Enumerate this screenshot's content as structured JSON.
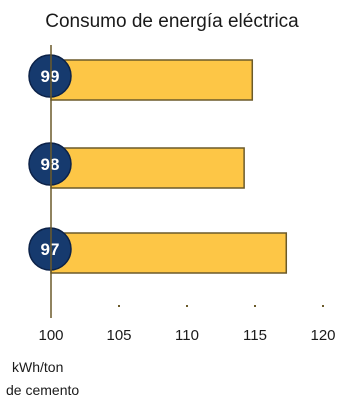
{
  "chart_data": {
    "type": "bar",
    "orientation": "horizontal",
    "title": "Consumo de energía eléctrica",
    "categories": [
      "99",
      "98",
      "97"
    ],
    "values": [
      114.8,
      114.2,
      117.3
    ],
    "xlim": [
      100,
      120
    ],
    "xticks": [
      100,
      105,
      110,
      115,
      120
    ],
    "xtick_labels": [
      "100",
      "105",
      "110",
      "115",
      "120"
    ],
    "xlabel_lines": [
      "kWh/ton",
      "de cemento"
    ],
    "grid": false,
    "legend": "none",
    "colors": {
      "bar_fill": "#fdc646",
      "bar_stroke": "#6b5a2a",
      "badge_fill": "#163a6e",
      "badge_stroke": "#0c2248",
      "axis": "#6b5a2a",
      "text": "#1a1a1a"
    }
  }
}
